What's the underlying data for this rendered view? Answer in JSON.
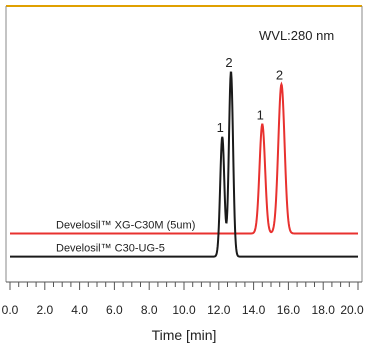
{
  "chart_data": {
    "type": "line",
    "annotation": "WVL:280 nm",
    "xlabel": "Time [min]",
    "xlim": [
      0.0,
      20.0
    ],
    "xtick_labels": [
      "0.0",
      "2.0",
      "4.0",
      "6.0",
      "8.0",
      "10.0",
      "12.0",
      "14.0",
      "16.0",
      "18.0",
      "20.0"
    ],
    "xtick_values": [
      0,
      2,
      4,
      6,
      8,
      10,
      12,
      14,
      16,
      18,
      20
    ],
    "ylim": [
      0,
      100
    ],
    "series": [
      {
        "name": "Develosil™ XG-C30M (5um)",
        "color": "#e8312f",
        "baseline": 15,
        "peaks": [
          {
            "label": "1",
            "x": 14.5,
            "height": 52,
            "width": 0.16
          },
          {
            "label": "2",
            "x": 15.6,
            "height": 71,
            "width": 0.18
          }
        ]
      },
      {
        "name": "Develosil™ C30-UG-5",
        "color": "#1a1a1a",
        "baseline": 4,
        "peaks": [
          {
            "label": "1",
            "x": 12.2,
            "height": 57,
            "width": 0.12
          },
          {
            "label": "2",
            "x": 12.7,
            "height": 88,
            "width": 0.12
          }
        ]
      }
    ],
    "top_line_color": "#e0a000"
  }
}
